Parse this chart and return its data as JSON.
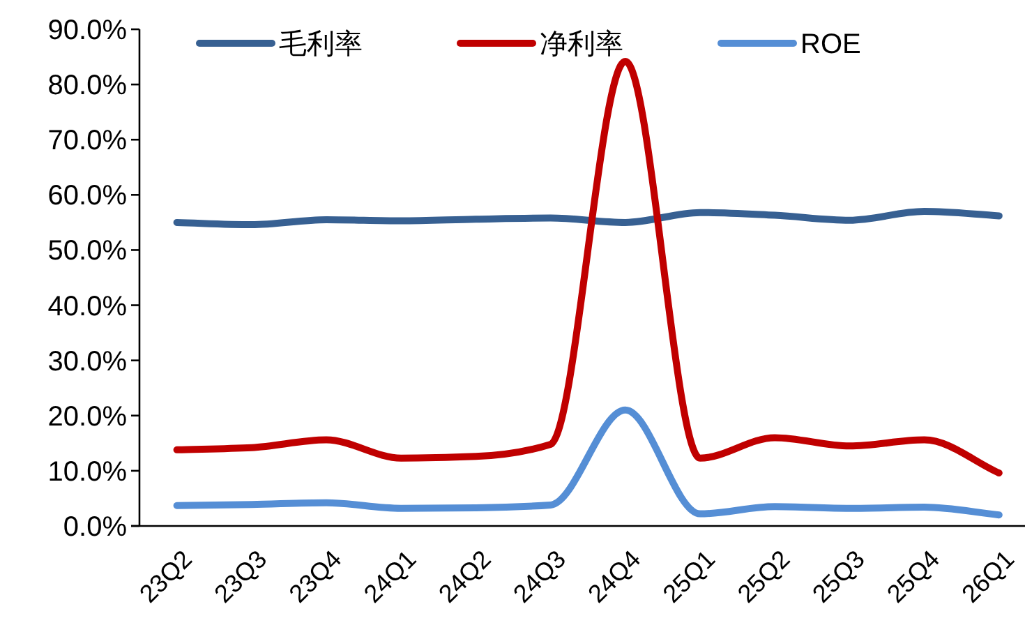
{
  "chart_data": {
    "type": "line",
    "categories": [
      "23Q2",
      "23Q3",
      "23Q4",
      "24Q1",
      "24Q2",
      "24Q3",
      "24Q4",
      "25Q1",
      "25Q2",
      "25Q3",
      "25Q4",
      "26Q1"
    ],
    "series": [
      {
        "name": "毛利率",
        "color": "#376092",
        "values": [
          55.0,
          54.6,
          55.5,
          55.3,
          55.6,
          55.8,
          55.0,
          56.8,
          56.3,
          55.4,
          57.0,
          56.2
        ]
      },
      {
        "name": "净利率",
        "color": "#c00000",
        "values": [
          13.8,
          14.2,
          15.6,
          12.3,
          12.6,
          14.8,
          84.2,
          12.3,
          16.0,
          14.5,
          15.6,
          9.6
        ]
      },
      {
        "name": "ROE",
        "color": "#558ed5",
        "values": [
          3.7,
          3.9,
          4.2,
          3.2,
          3.3,
          3.8,
          21.0,
          2.2,
          3.5,
          3.2,
          3.4,
          2.0
        ]
      }
    ],
    "ylim": [
      0,
      90
    ],
    "yticks": [
      {
        "value": 0,
        "label": "0.0%"
      },
      {
        "value": 10,
        "label": "10.0%"
      },
      {
        "value": 20,
        "label": "20.0%"
      },
      {
        "value": 30,
        "label": "30.0%"
      },
      {
        "value": 40,
        "label": "40.0%"
      },
      {
        "value": 50,
        "label": "50.0%"
      },
      {
        "value": 60,
        "label": "60.0%"
      },
      {
        "value": 70,
        "label": "70.0%"
      },
      {
        "value": 80,
        "label": "80.0%"
      },
      {
        "value": 90,
        "label": "90.0%"
      }
    ],
    "legend": "top",
    "grid": false,
    "marker": "none",
    "line_style": "solid"
  }
}
